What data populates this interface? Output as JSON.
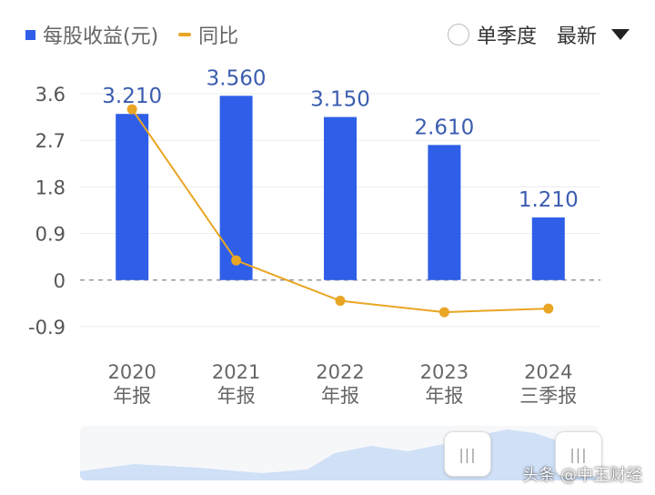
{
  "legend": {
    "eps_label": "每股收益(元)",
    "yoy_label": "同比",
    "eps_color": "#2F5FE8",
    "yoy_color": "#E9A524"
  },
  "controls": {
    "quarter_label": "单季度",
    "sort_label": "最新"
  },
  "chart_data": {
    "type": "bar",
    "categories": [
      [
        "2020",
        "年报"
      ],
      [
        "2021",
        "年报"
      ],
      [
        "2022",
        "年报"
      ],
      [
        "2023",
        "年报"
      ],
      [
        "2024",
        "三季报"
      ]
    ],
    "series": [
      {
        "name": "每股收益(元)",
        "type": "bar",
        "values": [
          3.21,
          3.56,
          3.15,
          2.61,
          1.21
        ],
        "labels": [
          "3.210",
          "3.560",
          "3.150",
          "2.610",
          "1.210"
        ]
      },
      {
        "name": "同比",
        "type": "line",
        "values": [
          3.3,
          0.38,
          -0.4,
          -0.62,
          -0.55
        ]
      }
    ],
    "yticks": [
      "3.6",
      "2.7",
      "1.8",
      "0.9",
      "0",
      "-0.9"
    ],
    "ytick_values": [
      3.6,
      2.7,
      1.8,
      0.9,
      0,
      -0.9
    ],
    "ylim": [
      -0.9,
      3.6
    ],
    "grid": true,
    "zero_line": "dashed"
  },
  "navigator": {
    "handle_glyph": "|||"
  },
  "watermark": "头条 @中玉财经"
}
